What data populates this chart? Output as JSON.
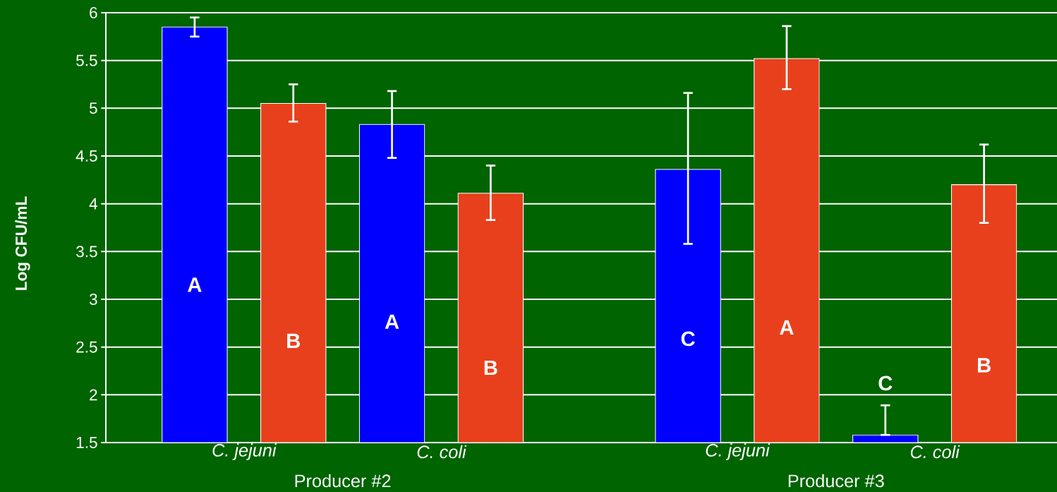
{
  "chart_data": {
    "type": "bar",
    "ylabel": "Log CFU/mL",
    "categories": [
      "C. jejuni",
      "C. coli",
      "C. jejuni",
      "C. coli"
    ],
    "series": [
      {
        "color": "#0000ff",
        "values": [
          5.85,
          4.83,
          4.36,
          1.58
        ],
        "errors": [
          [
            5.75,
            5.95
          ],
          [
            4.48,
            5.18
          ],
          [
            3.58,
            5.16
          ],
          [
            1.58,
            1.89
          ]
        ],
        "value_labels": [
          "A",
          "A",
          "C",
          "C"
        ]
      },
      {
        "color": "#e8401c",
        "values": [
          5.05,
          4.11,
          5.52,
          4.2
        ],
        "errors": [
          [
            4.86,
            5.25
          ],
          [
            3.83,
            4.4
          ],
          [
            5.2,
            5.86
          ],
          [
            3.8,
            4.62
          ]
        ],
        "value_labels": [
          "B",
          "B",
          "A",
          "B"
        ]
      }
    ],
    "ylim": [
      1.5,
      6
    ],
    "yticks": [
      1.5,
      2,
      2.5,
      3,
      3.5,
      4,
      4.5,
      5,
      5.5,
      6
    ],
    "grid": "y",
    "annotations": [
      "Producer #2",
      "Producer #3"
    ]
  }
}
